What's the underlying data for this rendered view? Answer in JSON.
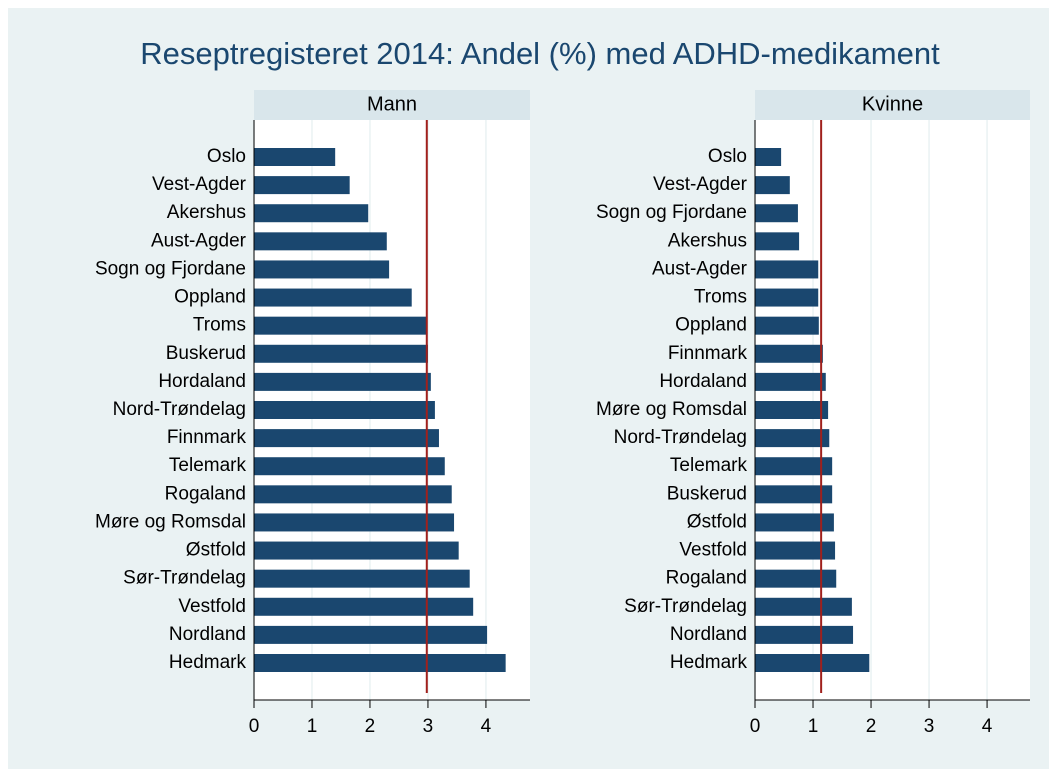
{
  "title": "Reseptregisteret 2014: Andel (%) med ADHD-medikament",
  "chart_data": [
    {
      "type": "bar",
      "orientation": "horizontal",
      "panel": "Mann",
      "categories": [
        "Oslo",
        "Vest-Agder",
        "Akershus",
        "Aust-Agder",
        "Sogn og Fjordane",
        "Oppland",
        "Troms",
        "Buskerud",
        "Hordaland",
        "Nord-Trøndelag",
        "Finnmark",
        "Telemark",
        "Rogaland",
        "Møre og Romsdal",
        "Østfold",
        "Sør-Trøndelag",
        "Vestfold",
        "Nordland",
        "Hedmark"
      ],
      "values": [
        1.4,
        1.65,
        1.97,
        2.29,
        2.33,
        2.72,
        2.98,
        3.0,
        3.05,
        3.12,
        3.19,
        3.29,
        3.41,
        3.45,
        3.53,
        3.72,
        3.78,
        4.02,
        4.34
      ],
      "color": "#1a476f",
      "reference_line": 2.98,
      "reference_color": "#a0201c",
      "xlim": [
        0,
        4.76
      ],
      "xticks": [
        0,
        1,
        2,
        3,
        4
      ],
      "grid": true
    },
    {
      "type": "bar",
      "orientation": "horizontal",
      "panel": "Kvinne",
      "categories": [
        "Oslo",
        "Vest-Agder",
        "Sogn og Fjordane",
        "Akershus",
        "Aust-Agder",
        "Troms",
        "Oppland",
        "Finnmark",
        "Hordaland",
        "Møre og Romsdal",
        "Nord-Trøndelag",
        "Telemark",
        "Buskerud",
        "Østfold",
        "Vestfold",
        "Rogaland",
        "Sør-Trøndelag",
        "Nordland",
        "Hedmark"
      ],
      "values": [
        0.45,
        0.6,
        0.74,
        0.76,
        1.09,
        1.09,
        1.1,
        1.17,
        1.22,
        1.26,
        1.28,
        1.33,
        1.33,
        1.36,
        1.38,
        1.4,
        1.67,
        1.69,
        1.97
      ],
      "color": "#1a476f",
      "reference_line": 1.14,
      "reference_color": "#a0201c",
      "xlim": [
        0,
        4.74
      ],
      "xticks": [
        0,
        1,
        2,
        3,
        4
      ],
      "grid": true
    }
  ]
}
